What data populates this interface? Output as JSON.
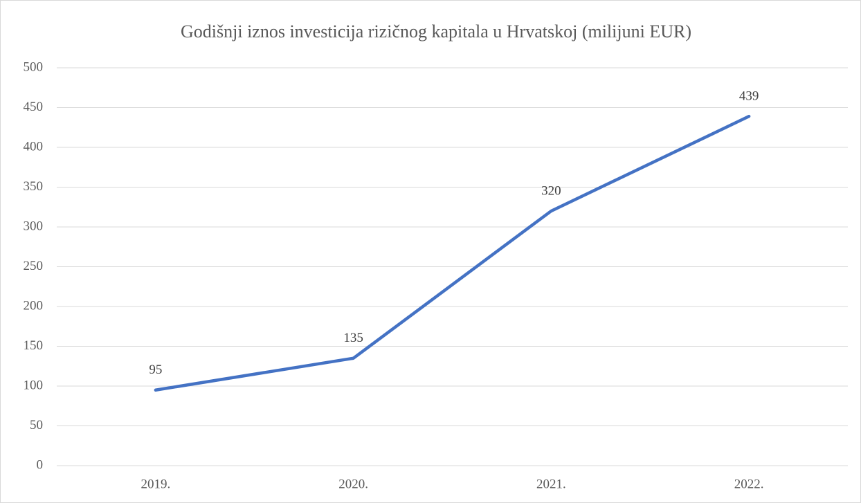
{
  "chart_data": {
    "type": "line",
    "title": "Godišnji iznos investicija rizičnog kapitala u Hrvatskoj (milijuni EUR)",
    "categories": [
      "2019.",
      "2020.",
      "2021.",
      "2022."
    ],
    "values": [
      95,
      135,
      320,
      439
    ],
    "color": "#4472c4",
    "ylim": [
      0,
      500
    ],
    "yticks": [
      0,
      50,
      100,
      150,
      200,
      250,
      300,
      350,
      400,
      450,
      500
    ],
    "grid": true,
    "data_labels": true
  }
}
